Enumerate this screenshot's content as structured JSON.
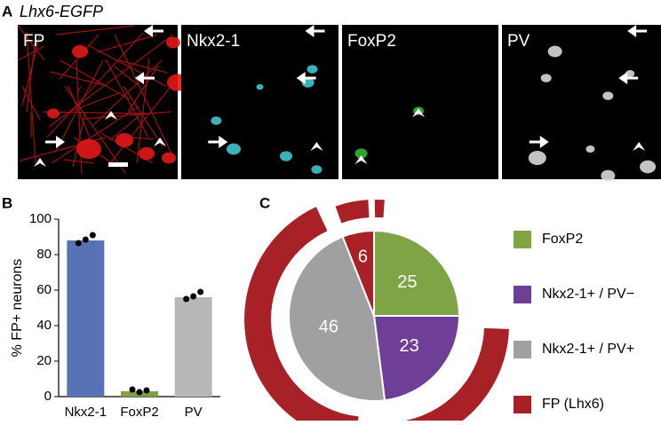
{
  "figure": {
    "panel_labels": [
      "A",
      "B",
      "C"
    ],
    "title": "Lhx6-EGFP",
    "image_labels": [
      "FP",
      "Nkx2-1",
      "FoxP2",
      "PV"
    ]
  },
  "chart_data": [
    {
      "type": "bar",
      "categories": [
        "Nkx2-1",
        "FoxP2",
        "PV"
      ],
      "values": [
        88,
        3,
        56
      ],
      "colors": [
        "#5872b6",
        "#7da23f",
        "#b8b8b8"
      ],
      "points": [
        [
          86.5,
          88.5,
          91
        ],
        [
          4,
          2.5,
          3.5
        ],
        [
          55,
          56.5,
          59
        ]
      ],
      "ylabel": "% FP+ neurons",
      "ylim": [
        0,
        100
      ],
      "yticks": [
        0,
        20,
        40,
        60,
        80,
        100
      ]
    },
    {
      "type": "pie",
      "series": [
        {
          "name": "FoxP2",
          "color": "#7fa446",
          "values": [
            25
          ]
        },
        {
          "name": "Nkx2-1+ / PV−",
          "color": "#6f3f98",
          "values": [
            23
          ]
        },
        {
          "name": "Nkx2-1+ / PV+",
          "color": "#a0a0a0",
          "values": [
            46
          ]
        },
        {
          "name": "FP (Lhx6)",
          "color": "#a82127",
          "values": [
            6
          ]
        }
      ]
    }
  ]
}
